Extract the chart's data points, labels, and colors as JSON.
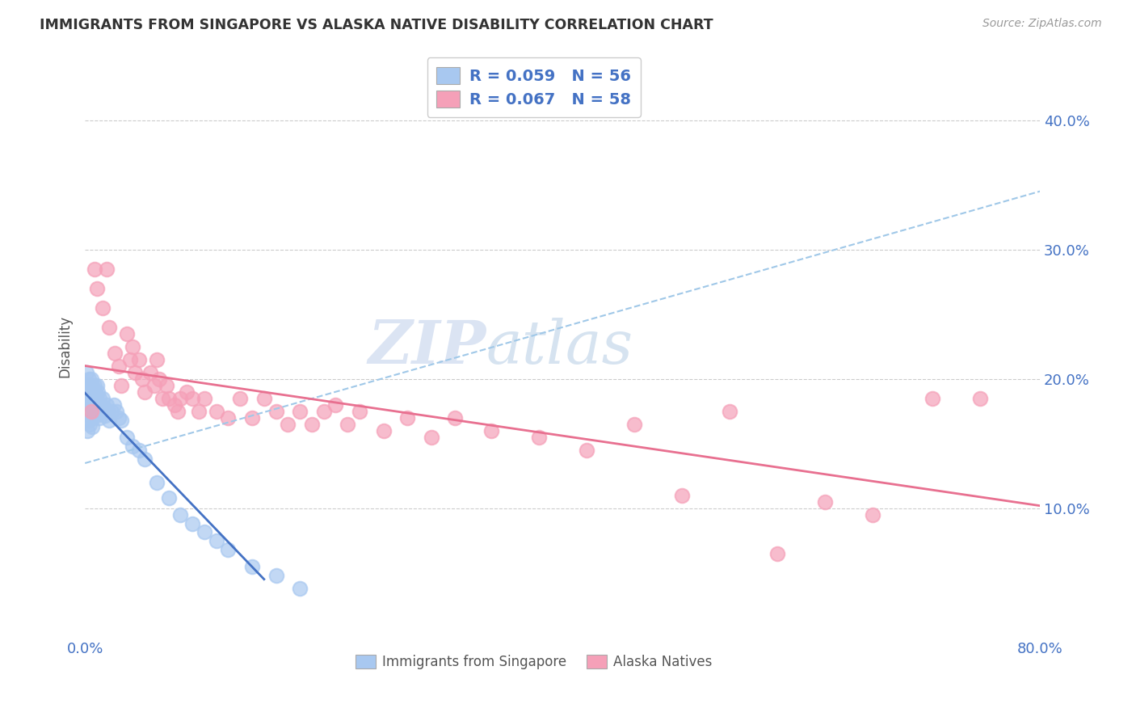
{
  "title": "IMMIGRANTS FROM SINGAPORE VS ALASKA NATIVE DISABILITY CORRELATION CHART",
  "source": "Source: ZipAtlas.com",
  "ylabel": "Disability",
  "legend1_R": "0.059",
  "legend1_N": "56",
  "legend2_R": "0.067",
  "legend2_N": "58",
  "color_blue": "#A8C8F0",
  "color_pink": "#F5A0B8",
  "line_blue_solid": "#4472C4",
  "line_blue_dashed": "#A0C8E8",
  "line_pink_solid": "#E87090",
  "watermark_zip": "ZIP",
  "watermark_atlas": "atlas",
  "xlim": [
    0.0,
    0.8
  ],
  "ylim": [
    0.0,
    0.45
  ],
  "blue_x": [
    0.001,
    0.001,
    0.002,
    0.002,
    0.002,
    0.003,
    0.003,
    0.003,
    0.004,
    0.004,
    0.004,
    0.005,
    0.005,
    0.005,
    0.006,
    0.006,
    0.006,
    0.007,
    0.007,
    0.008,
    0.008,
    0.009,
    0.009,
    0.01,
    0.01,
    0.011,
    0.011,
    0.012,
    0.012,
    0.013,
    0.014,
    0.015,
    0.016,
    0.017,
    0.018,
    0.019,
    0.02,
    0.022,
    0.024,
    0.026,
    0.028,
    0.03,
    0.035,
    0.04,
    0.045,
    0.05,
    0.06,
    0.07,
    0.08,
    0.09,
    0.1,
    0.11,
    0.12,
    0.14,
    0.16,
    0.18
  ],
  "blue_y": [
    0.205,
    0.19,
    0.195,
    0.175,
    0.16,
    0.2,
    0.185,
    0.168,
    0.195,
    0.18,
    0.165,
    0.2,
    0.185,
    0.17,
    0.195,
    0.178,
    0.163,
    0.19,
    0.175,
    0.195,
    0.178,
    0.188,
    0.172,
    0.195,
    0.18,
    0.19,
    0.174,
    0.185,
    0.17,
    0.18,
    0.175,
    0.185,
    0.178,
    0.172,
    0.18,
    0.175,
    0.168,
    0.175,
    0.18,
    0.175,
    0.17,
    0.168,
    0.155,
    0.148,
    0.145,
    0.138,
    0.12,
    0.108,
    0.095,
    0.088,
    0.082,
    0.075,
    0.068,
    0.055,
    0.048,
    0.038
  ],
  "pink_x": [
    0.005,
    0.008,
    0.01,
    0.015,
    0.018,
    0.02,
    0.025,
    0.028,
    0.03,
    0.035,
    0.038,
    0.04,
    0.042,
    0.045,
    0.048,
    0.05,
    0.055,
    0.058,
    0.06,
    0.062,
    0.065,
    0.068,
    0.07,
    0.075,
    0.078,
    0.08,
    0.085,
    0.09,
    0.095,
    0.1,
    0.11,
    0.12,
    0.13,
    0.14,
    0.15,
    0.16,
    0.17,
    0.18,
    0.19,
    0.2,
    0.21,
    0.22,
    0.23,
    0.25,
    0.27,
    0.29,
    0.31,
    0.34,
    0.38,
    0.42,
    0.46,
    0.5,
    0.54,
    0.58,
    0.62,
    0.66,
    0.71,
    0.75
  ],
  "pink_y": [
    0.175,
    0.285,
    0.27,
    0.255,
    0.285,
    0.24,
    0.22,
    0.21,
    0.195,
    0.235,
    0.215,
    0.225,
    0.205,
    0.215,
    0.2,
    0.19,
    0.205,
    0.195,
    0.215,
    0.2,
    0.185,
    0.195,
    0.185,
    0.18,
    0.175,
    0.185,
    0.19,
    0.185,
    0.175,
    0.185,
    0.175,
    0.17,
    0.185,
    0.17,
    0.185,
    0.175,
    0.165,
    0.175,
    0.165,
    0.175,
    0.18,
    0.165,
    0.175,
    0.16,
    0.17,
    0.155,
    0.17,
    0.16,
    0.155,
    0.145,
    0.165,
    0.11,
    0.175,
    0.065,
    0.105,
    0.095,
    0.185,
    0.185
  ]
}
